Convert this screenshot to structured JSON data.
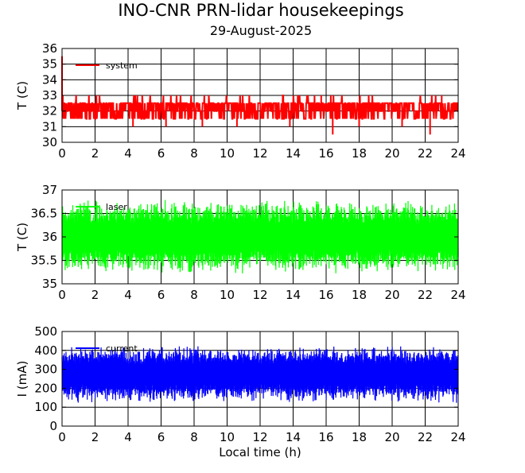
{
  "figure": {
    "title": "INO-CNR PRN-lidar housekeepings",
    "subtitle": "29-August-2025"
  },
  "chart_data": [
    {
      "type": "line",
      "ylabel": "T (C)",
      "xlabel": "",
      "xlim": [
        0,
        24
      ],
      "ylim": [
        30,
        36
      ],
      "x_ticks": [
        0,
        2,
        4,
        6,
        8,
        10,
        12,
        14,
        16,
        18,
        20,
        22,
        24
      ],
      "y_ticks": [
        30,
        31,
        32,
        33,
        34,
        35,
        36
      ],
      "grid": true,
      "legend_position": "top-left",
      "series": [
        {
          "name": "system",
          "color": "#ff0000",
          "description_values": {
            "base": 32.0,
            "typical_range": [
              31.5,
              32.5
            ],
            "spike_max": 35.5,
            "dips": [
              31.0,
              30.5
            ]
          },
          "x": [
            0.0,
            0.05,
            0.1,
            0.5,
            1,
            2,
            3,
            4,
            4.3,
            5,
            6,
            6.3,
            7,
            8,
            8.5,
            9,
            10,
            10.6,
            11,
            12,
            13,
            13.8,
            14,
            15,
            15.7,
            16,
            16.4,
            17,
            18,
            18.2,
            19,
            20,
            20.6,
            21,
            22,
            22.3,
            22.8,
            23,
            23.5,
            24
          ],
          "values": [
            35.5,
            33.0,
            32.0,
            32.0,
            32.0,
            32.0,
            32.0,
            32.0,
            31.0,
            32.0,
            32.0,
            31.0,
            32.0,
            32.0,
            31.0,
            32.0,
            32.0,
            31.0,
            32.0,
            32.0,
            32.0,
            31.0,
            32.0,
            32.0,
            33.0,
            32.0,
            30.5,
            32.0,
            31.0,
            32.0,
            32.0,
            32.0,
            31.0,
            32.0,
            32.0,
            30.5,
            32.0,
            33.0,
            32.0,
            32.0
          ]
        }
      ]
    },
    {
      "type": "line",
      "ylabel": "T (C)",
      "xlabel": "",
      "xlim": [
        0,
        24
      ],
      "ylim": [
        35,
        37
      ],
      "x_ticks": [
        0,
        2,
        4,
        6,
        8,
        10,
        12,
        14,
        16,
        18,
        20,
        22,
        24
      ],
      "y_ticks": [
        35,
        35.5,
        36,
        36.5,
        37
      ],
      "y_tick_labels": [
        "35",
        "35.5",
        "36",
        "36.5",
        "37"
      ],
      "grid": true,
      "legend_position": "top-left",
      "series": [
        {
          "name": "laser",
          "color": "#00ff00",
          "description_values": {
            "center": 36.0,
            "oscillation_range": [
              35.2,
              36.8
            ]
          },
          "x": [
            0,
            24
          ],
          "values": [
            36.0,
            36.0
          ]
        }
      ]
    },
    {
      "type": "line",
      "ylabel": "I (mA)",
      "xlabel": "Local time (h)",
      "xlim": [
        0,
        24
      ],
      "ylim": [
        0,
        500
      ],
      "x_ticks": [
        0,
        2,
        4,
        6,
        8,
        10,
        12,
        14,
        16,
        18,
        20,
        22,
        24
      ],
      "y_ticks": [
        0,
        100,
        200,
        300,
        400,
        500
      ],
      "grid": true,
      "legend_position": "top-left",
      "series": [
        {
          "name": "current",
          "color": "#0000ff",
          "description_values": {
            "center": 275,
            "oscillation_range": [
              120,
              430
            ]
          },
          "x": [
            0,
            24
          ],
          "values": [
            275,
            275
          ]
        }
      ]
    }
  ]
}
